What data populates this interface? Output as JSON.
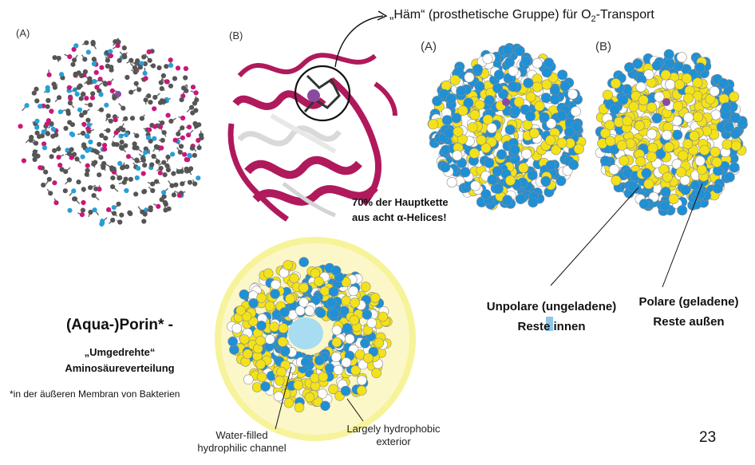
{
  "slide": {
    "page_number": "23",
    "heme_label": {
      "prefix": "„Häm“ (prosthetische Gruppe) für O",
      "subscript": "2",
      "suffix": "-Transport"
    },
    "panel_labels": {
      "ball_stick": "(A)",
      "ribbon": "(B)",
      "space_fill_a": "(A)",
      "space_fill_b": "(B)"
    },
    "helix_note": {
      "line1": "70% der Hauptkette",
      "line2": "aus acht α-Helices!"
    },
    "unpolar_label": {
      "line1": "Unpolare (ungeladene)",
      "line2": "Reste innen"
    },
    "polar_label": {
      "line1": "Polare (geladene)",
      "line2": "Reste außen"
    },
    "porin": {
      "title": "(Aqua-)Porin* -",
      "subtitle_line1": "„Umgedrehte“",
      "subtitle_line2": "Aminosäureverteilung",
      "footnote": "*in der äußeren Membran von Bakterien",
      "channel_label_line1": "Water-filled",
      "channel_label_line2": "hydrophilic channel",
      "exterior_label_line1": "Largely hydrophobic",
      "exterior_label_line2": "exterior"
    },
    "colors": {
      "hydrophobic_yellow": "#f3e21a",
      "polar_blue": "#1e90d6",
      "neutral_white": "#e6e6e6",
      "ribbon_magenta": "#b0195c",
      "carbon_gray": "#555555",
      "oxygen_magenta": "#c8187a",
      "nitrogen_cyan": "#27a0d8",
      "heme_purple": "#8a4aa0",
      "glow_yellow": "#f7f39a"
    }
  }
}
